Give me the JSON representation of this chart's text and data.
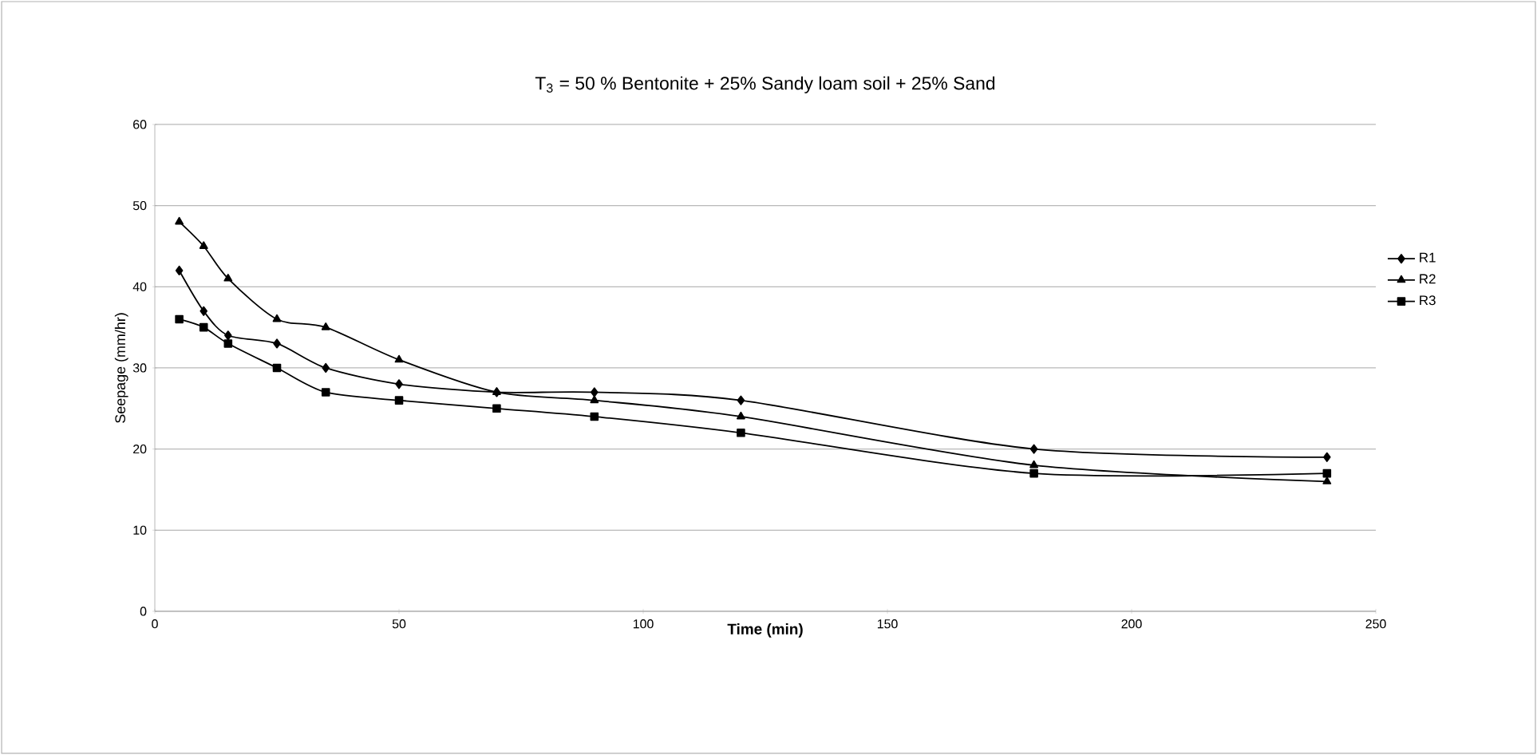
{
  "chart_data": {
    "type": "line",
    "title": "T$_{3}$ = 50 % Bentonite + 25% Sandy loam soil + 25% Sand",
    "xlabel": "Time (min)",
    "ylabel": "Seepage (mm/hr)",
    "x": [
      5,
      10,
      15,
      25,
      35,
      50,
      70,
      90,
      120,
      180,
      240
    ],
    "xlim": [
      0,
      250
    ],
    "xticks": [
      0,
      50,
      100,
      150,
      200,
      250
    ],
    "ylim": [
      0,
      60
    ],
    "yticks": [
      0,
      10,
      20,
      30,
      40,
      50,
      60
    ],
    "grid": "y",
    "legend": "right",
    "series": [
      {
        "name": "R1",
        "color": "#000000",
        "marker": "diamond",
        "values": [
          42,
          37,
          34,
          33,
          30,
          28,
          27,
          27,
          26,
          20,
          19
        ]
      },
      {
        "name": "R2",
        "color": "#000000",
        "marker": "triangle",
        "values": [
          48,
          45,
          41,
          36,
          35,
          31,
          27,
          26,
          24,
          18,
          16
        ]
      },
      {
        "name": "R3",
        "color": "#000000",
        "marker": "square",
        "values": [
          36,
          35,
          33,
          30,
          27,
          26,
          25,
          24,
          22,
          17,
          17
        ]
      }
    ]
  }
}
